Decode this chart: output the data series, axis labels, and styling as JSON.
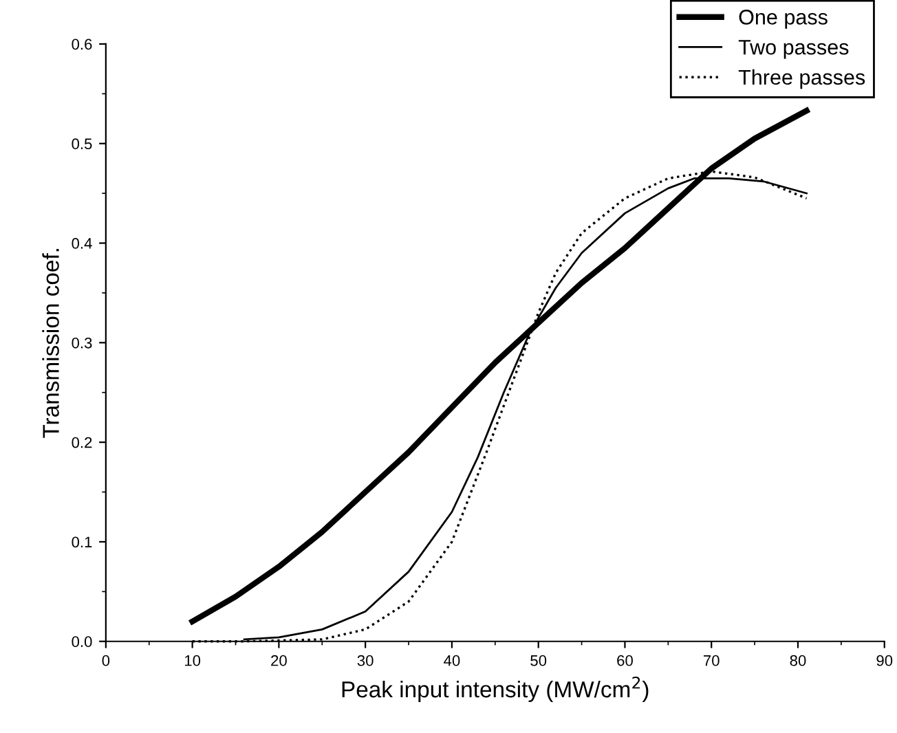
{
  "chart_data": {
    "type": "line",
    "xlabel": "Peak input intensity (MW/cm$^{2}$)",
    "ylabel": "Transmission coef.",
    "xlim": [
      0,
      90
    ],
    "xticks": [
      0,
      10,
      20,
      30,
      40,
      50,
      60,
      70,
      80,
      90
    ],
    "ylim": [
      0,
      0.6
    ],
    "yticks": [
      {
        "value": 0,
        "label": "0.0"
      },
      0.1,
      0.2,
      0.3,
      0.4,
      0.5,
      0.6
    ],
    "legend": "top right",
    "grid": false,
    "series": [
      {
        "name": "One pass",
        "color": "#000000",
        "line_style": "solid",
        "x": [
          10,
          15,
          20,
          25,
          30,
          35,
          40,
          45,
          50,
          55,
          60,
          65,
          70,
          75,
          81
        ],
        "values": [
          0.02,
          0.045,
          0.075,
          0.11,
          0.15,
          0.19,
          0.235,
          0.28,
          0.32,
          0.36,
          0.395,
          0.435,
          0.475,
          0.505,
          0.533
        ]
      },
      {
        "name": "Two passes",
        "color": "#000000",
        "line_style": "solid",
        "x": [
          16,
          20,
          25,
          30,
          35,
          40,
          43,
          46,
          49,
          52,
          55,
          60,
          65,
          68,
          72,
          76,
          81
        ],
        "values": [
          0.002,
          0.004,
          0.012,
          0.03,
          0.07,
          0.13,
          0.185,
          0.25,
          0.31,
          0.355,
          0.39,
          0.43,
          0.455,
          0.465,
          0.465,
          0.462,
          0.45
        ]
      },
      {
        "name": "Three passes",
        "color": "#000000",
        "line_style": "dotted",
        "x": [
          10,
          16,
          25,
          30,
          35,
          40,
          44,
          47,
          50,
          52,
          55,
          60,
          65,
          70,
          75,
          81
        ],
        "values": [
          0,
          0,
          0.002,
          0.012,
          0.04,
          0.1,
          0.19,
          0.26,
          0.33,
          0.37,
          0.41,
          0.445,
          0.465,
          0.472,
          0.466,
          0.445
        ]
      }
    ]
  }
}
